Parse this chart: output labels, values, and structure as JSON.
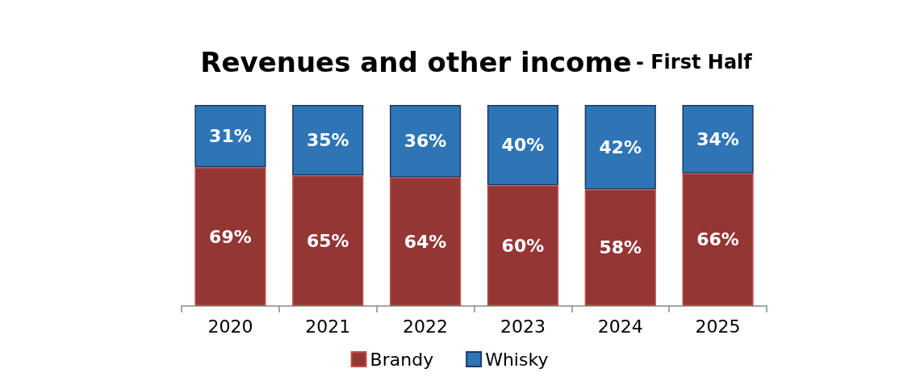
{
  "chart_data": {
    "type": "bar",
    "title": "Revenues and other income",
    "subtitle": "- First Half",
    "categories": [
      "2020",
      "2021",
      "2022",
      "2023",
      "2024",
      "2025"
    ],
    "stacked": true,
    "legend": "bottom",
    "series": [
      {
        "name": "Brandy",
        "color": "#943634",
        "values": [
          69,
          65,
          64,
          60,
          58,
          66
        ],
        "value_labels": [
          "69%",
          "65%",
          "64%",
          "60%",
          "58%",
          "66%"
        ]
      },
      {
        "name": "Whisky",
        "color": "#2e75b6",
        "values": [
          31,
          35,
          36,
          40,
          42,
          34
        ],
        "value_labels": [
          "31%",
          "35%",
          "36%",
          "40%",
          "42%",
          "34%"
        ]
      }
    ]
  }
}
